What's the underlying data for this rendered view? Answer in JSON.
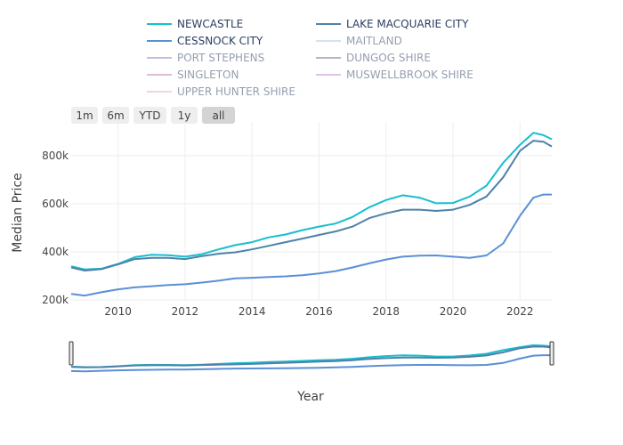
{
  "range_buttons": [
    {
      "label": "1m",
      "active": false
    },
    {
      "label": "6m",
      "active": false
    },
    {
      "label": "YTD",
      "active": false
    },
    {
      "label": "1y",
      "active": false
    },
    {
      "label": "all",
      "active": true
    }
  ],
  "chart_data": {
    "type": "line",
    "xlabel": "Year",
    "ylabel": "Median Price",
    "xlim": [
      2008.6,
      2022.95
    ],
    "ylim": [
      200000,
      940000
    ],
    "x_ticks": [
      2010,
      2012,
      2014,
      2016,
      2018,
      2020,
      2022
    ],
    "y_ticks": [
      200000,
      400000,
      600000,
      800000
    ],
    "y_tick_labels": [
      "200k",
      "400k",
      "600k",
      "800k"
    ],
    "grid": true,
    "legend_position": "top",
    "has_range_slider": true,
    "series": [
      {
        "name": "NEWCASTLE",
        "color": "#17becf",
        "visible": true,
        "x": [
          2008.6,
          2009.0,
          2009.5,
          2010.0,
          2010.5,
          2011.0,
          2011.5,
          2012.0,
          2012.5,
          2013.0,
          2013.5,
          2014.0,
          2014.5,
          2015.0,
          2015.5,
          2016.0,
          2016.5,
          2017.0,
          2017.5,
          2018.0,
          2018.5,
          2019.0,
          2019.5,
          2020.0,
          2020.5,
          2021.0,
          2021.5,
          2022.0,
          2022.4,
          2022.7,
          2022.95
        ],
        "y": [
          340000,
          327000,
          330000,
          350000,
          378000,
          388000,
          386000,
          380000,
          390000,
          410000,
          428000,
          440000,
          460000,
          472000,
          490000,
          505000,
          518000,
          545000,
          585000,
          615000,
          635000,
          625000,
          602000,
          603000,
          630000,
          675000,
          770000,
          845000,
          895000,
          885000,
          868000
        ]
      },
      {
        "name": "LAKE MACQUARIE CITY",
        "color": "#4f81a8",
        "visible": true,
        "x": [
          2008.6,
          2009.0,
          2009.5,
          2010.0,
          2010.5,
          2011.0,
          2011.5,
          2012.0,
          2012.5,
          2013.0,
          2013.5,
          2014.0,
          2014.5,
          2015.0,
          2015.5,
          2016.0,
          2016.5,
          2017.0,
          2017.5,
          2018.0,
          2018.5,
          2019.0,
          2019.5,
          2020.0,
          2020.5,
          2021.0,
          2021.5,
          2022.0,
          2022.4,
          2022.7,
          2022.95
        ],
        "y": [
          335000,
          322000,
          328000,
          348000,
          370000,
          375000,
          375000,
          370000,
          382000,
          392000,
          398000,
          410000,
          425000,
          440000,
          455000,
          470000,
          485000,
          505000,
          540000,
          560000,
          575000,
          575000,
          570000,
          575000,
          595000,
          630000,
          710000,
          820000,
          862000,
          858000,
          838000
        ]
      },
      {
        "name": "CESSNOCK CITY",
        "color": "#5b8fd6",
        "visible": true,
        "x": [
          2008.6,
          2009.0,
          2009.5,
          2010.0,
          2010.5,
          2011.0,
          2011.5,
          2012.0,
          2012.5,
          2013.0,
          2013.5,
          2014.0,
          2014.5,
          2015.0,
          2015.5,
          2016.0,
          2016.5,
          2017.0,
          2017.5,
          2018.0,
          2018.5,
          2019.0,
          2019.5,
          2020.0,
          2020.5,
          2021.0,
          2021.5,
          2022.0,
          2022.4,
          2022.7,
          2022.95
        ],
        "y": [
          225000,
          218000,
          232000,
          244000,
          252000,
          257000,
          262000,
          265000,
          272000,
          280000,
          290000,
          292000,
          295000,
          298000,
          303000,
          310000,
          320000,
          335000,
          352000,
          368000,
          380000,
          384000,
          385000,
          380000,
          375000,
          385000,
          435000,
          550000,
          625000,
          638000,
          638000
        ]
      },
      {
        "name": "MAITLAND",
        "color": "#a6c4e8",
        "visible": false,
        "x": [],
        "y": []
      },
      {
        "name": "PORT STEPHENS",
        "color": "#8c7cc8",
        "visible": false,
        "x": [],
        "y": []
      },
      {
        "name": "DUNGOG SHIRE",
        "color": "#6c6c96",
        "visible": false,
        "x": [],
        "y": []
      },
      {
        "name": "SINGLETON",
        "color": "#c17bb5",
        "visible": false,
        "x": [],
        "y": []
      },
      {
        "name": "MUSWELLBROOK SHIRE",
        "color": "#b888d8",
        "visible": false,
        "x": [],
        "y": []
      },
      {
        "name": "UPPER HUNTER SHIRE",
        "color": "#e0a8d8",
        "visible": false,
        "x": [],
        "y": []
      }
    ]
  }
}
